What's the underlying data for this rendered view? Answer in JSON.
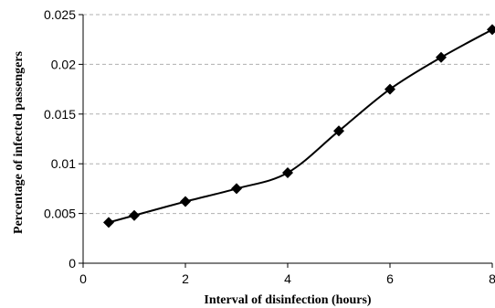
{
  "chart_data": {
    "type": "line",
    "title": "",
    "xlabel": "Interval of disinfection (hours)",
    "ylabel": "Percentage of infected passengers",
    "xlim": [
      0,
      8
    ],
    "ylim": [
      0,
      0.025
    ],
    "xticks": [
      0,
      2,
      4,
      6,
      8
    ],
    "xtick_labels": [
      "0",
      "2",
      "4",
      "6",
      "8"
    ],
    "yticks": [
      0,
      0.005,
      0.01,
      0.015,
      0.02,
      0.025
    ],
    "ytick_labels": [
      "0",
      "0.005",
      "0.01",
      "0.015",
      "0.02",
      "0.025"
    ],
    "grid": "horizontal dashed",
    "legend": "none",
    "colors": {
      "line": "#000000",
      "marker": "#000000",
      "grid": "#b0b0b0",
      "axis": "#000000"
    },
    "series": [
      {
        "marker": "diamond",
        "smooth": true,
        "x": [
          0.5,
          1,
          2,
          3,
          4,
          5,
          6,
          7,
          8
        ],
        "y": [
          0.0041,
          0.0048,
          0.0062,
          0.0075,
          0.0091,
          0.0133,
          0.0175,
          0.0207,
          0.0235
        ]
      }
    ]
  }
}
